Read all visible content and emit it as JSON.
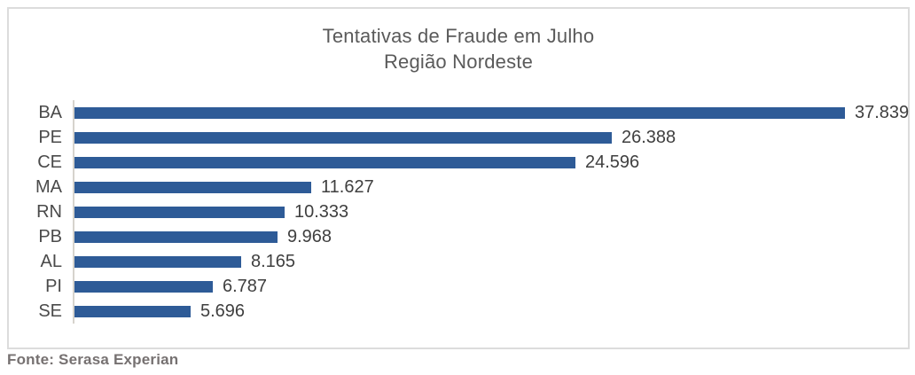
{
  "chart_data": {
    "type": "bar",
    "orientation": "horizontal",
    "title": "Tentativas de Fraude em Julho",
    "subtitle": "Região Nordeste",
    "categories": [
      "BA",
      "PE",
      "CE",
      "MA",
      "RN",
      "PB",
      "AL",
      "PI",
      "SE"
    ],
    "values": [
      37839,
      26388,
      24596,
      11627,
      10333,
      9968,
      8165,
      6787,
      5696
    ],
    "value_labels": [
      "37.839",
      "26.388",
      "24.596",
      "11.627",
      "10.333",
      "9.968",
      "8.165",
      "6.787",
      "5.696"
    ],
    "xlim": [
      0,
      40000
    ],
    "grid": false,
    "legend": false,
    "data_label_position": "outside-end",
    "sort": "descending"
  },
  "footer": {
    "source": "Fonte: Serasa Experian"
  },
  "colors": {
    "bar": "#2E5B97",
    "title_text": "#5A5A5A",
    "category_text": "#4A4A4A",
    "value_text": "#3F3F3F",
    "axis_line": "#D6D3CD",
    "frame_border": "#DCDCDC",
    "source_text": "#767171"
  }
}
